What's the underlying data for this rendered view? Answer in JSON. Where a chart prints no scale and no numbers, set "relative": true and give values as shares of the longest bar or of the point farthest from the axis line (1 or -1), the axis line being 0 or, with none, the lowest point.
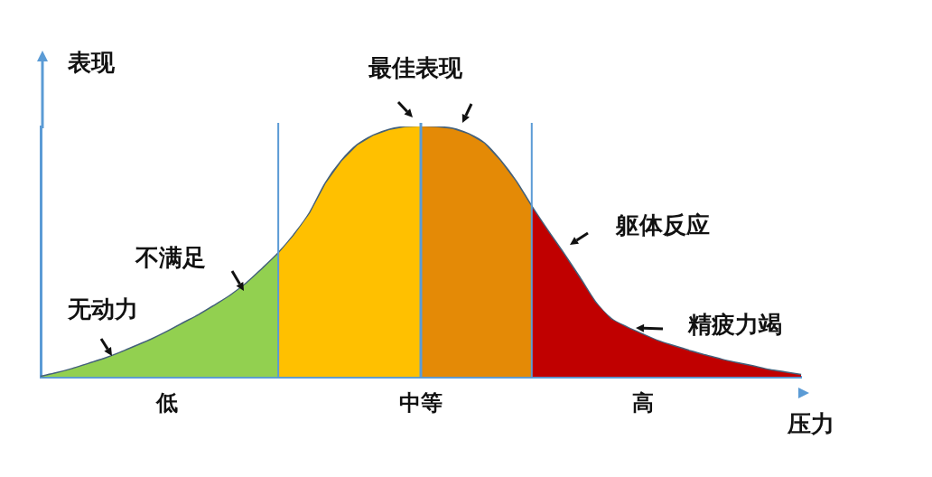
{
  "chart_data": {
    "type": "area",
    "relative": true,
    "xlabel": "压力",
    "ylabel": "表现",
    "categories": [
      null,
      null,
      null,
      null,
      null,
      null,
      null,
      null,
      "低",
      null,
      null,
      null,
      null,
      null,
      null,
      null,
      null,
      null,
      null,
      null,
      null,
      null,
      null,
      null,
      "中等",
      null,
      null,
      null,
      null,
      null,
      null,
      null,
      null,
      null,
      null,
      null,
      null,
      null,
      "高",
      null,
      null,
      null,
      null,
      null,
      null,
      null,
      null,
      null,
      null
    ],
    "legend": false,
    "series": [
      {
        "color": "#92d050",
        "values": [
          0,
          0.014,
          0.031,
          0.051,
          0.071,
          0.095,
          0.122,
          0.149,
          0.18,
          0.214,
          0.247,
          0.285,
          0.325,
          0.373,
          0.431,
          0.492,
          null,
          null,
          null,
          null,
          null,
          null,
          null,
          null,
          null,
          null,
          null,
          null,
          null,
          null,
          null,
          null,
          null,
          null,
          null,
          null,
          null,
          null,
          null,
          null,
          null,
          null,
          null,
          null,
          null,
          null,
          null,
          null,
          null
        ]
      },
      {
        "color": "#ffc000",
        "values": [
          null,
          null,
          null,
          null,
          null,
          null,
          null,
          null,
          null,
          null,
          null,
          null,
          null,
          null,
          null,
          0.492,
          0.566,
          0.654,
          0.773,
          0.861,
          0.925,
          0.963,
          0.986,
          0.997,
          1,
          null,
          null,
          null,
          null,
          null,
          null,
          null,
          null,
          null,
          null,
          null,
          null,
          null,
          null,
          null,
          null,
          null,
          null,
          null,
          null,
          null,
          null,
          null,
          null
        ]
      },
      {
        "color": "#e48a06",
        "values": [
          null,
          null,
          null,
          null,
          null,
          null,
          null,
          null,
          null,
          null,
          null,
          null,
          null,
          null,
          null,
          null,
          null,
          null,
          null,
          null,
          null,
          null,
          null,
          null,
          1,
          0.997,
          0.99,
          0.969,
          0.932,
          0.864,
          0.78,
          0.678,
          null,
          null,
          null,
          null,
          null,
          null,
          null,
          null,
          null,
          null,
          null,
          null,
          null,
          null,
          null,
          null,
          null
        ]
      },
      {
        "color": "#c00000",
        "values": [
          null,
          null,
          null,
          null,
          null,
          null,
          null,
          null,
          null,
          null,
          null,
          null,
          null,
          null,
          null,
          null,
          null,
          null,
          null,
          null,
          null,
          null,
          null,
          null,
          null,
          null,
          null,
          null,
          null,
          null,
          null,
          0.678,
          0.583,
          0.492,
          0.397,
          0.298,
          0.231,
          0.197,
          0.169,
          0.142,
          0.122,
          0.102,
          0.085,
          0.068,
          0.054,
          0.041,
          0.027,
          0.017,
          0.007
        ]
      },
      {
        "type": "line",
        "color": "#44617b",
        "values": [
          0,
          0.014,
          0.031,
          0.051,
          0.071,
          0.095,
          0.122,
          0.149,
          0.18,
          0.214,
          0.247,
          0.285,
          0.325,
          0.373,
          0.431,
          0.492,
          0.566,
          0.654,
          0.773,
          0.861,
          0.925,
          0.963,
          0.986,
          0.997,
          1,
          0.997,
          0.99,
          0.969,
          0.932,
          0.864,
          0.78,
          0.678,
          0.583,
          0.492,
          0.397,
          0.298,
          0.231,
          0.197,
          0.169,
          0.142,
          0.122,
          0.102,
          0.085,
          0.068,
          0.054,
          0.041,
          0.027,
          0.017,
          0.007
        ]
      }
    ],
    "ref_lines": [
      {
        "axis": "x",
        "value": "中等",
        "color": "#5b9bd5"
      }
    ],
    "annotations": [
      "最佳表现",
      "无动力",
      "不满足",
      "躯体反应",
      "精疲力竭"
    ]
  }
}
